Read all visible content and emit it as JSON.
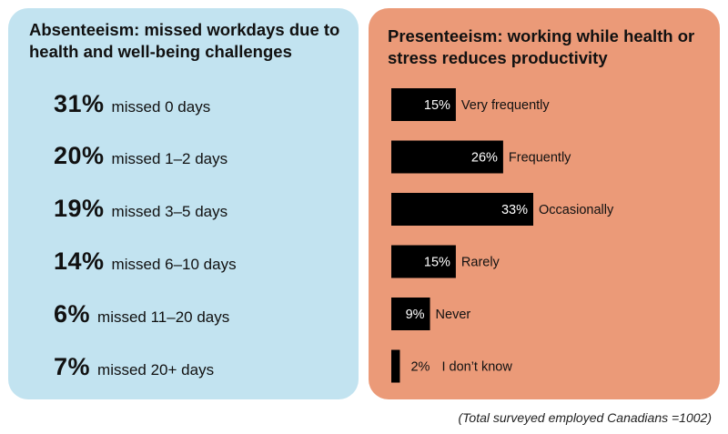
{
  "absenteeism": {
    "title": "Absenteeism: missed workdays due to health and well-being challenges",
    "items": [
      {
        "percent": "31%",
        "label": "missed 0 days"
      },
      {
        "percent": "20%",
        "label": "missed 1–2 days"
      },
      {
        "percent": "19%",
        "label": "missed 3–5 days"
      },
      {
        "percent": "14%",
        "label": "missed 6–10 days"
      },
      {
        "percent": "6%",
        "label": "missed 11–20 days"
      },
      {
        "percent": "7%",
        "label": "missed 20+ days"
      }
    ]
  },
  "presenteeism": {
    "title": "Presenteeism: working while health or stress reduces productivity"
  },
  "chart_data": {
    "type": "bar",
    "orientation": "horizontal",
    "title": "Presenteeism: working while health or stress reduces productivity",
    "categories": [
      "Very frequently",
      "Frequently",
      "Occasionally",
      "Rarely",
      "Never",
      "I don’t know"
    ],
    "values": [
      15,
      26,
      33,
      15,
      9,
      2
    ],
    "value_labels": [
      "15%",
      "26%",
      "33%",
      "15%",
      "9%",
      "2%"
    ],
    "unit": "%",
    "xlim": [
      0,
      33
    ],
    "bar_color": "#000000",
    "grid": false,
    "legend": "none"
  },
  "colors": {
    "left_panel": "#c2e3f0",
    "right_panel": "#eb9a78",
    "bar": "#000000",
    "bar_label": "#ffffff"
  },
  "footnote": "(Total surveyed employed Canadians =1002)"
}
